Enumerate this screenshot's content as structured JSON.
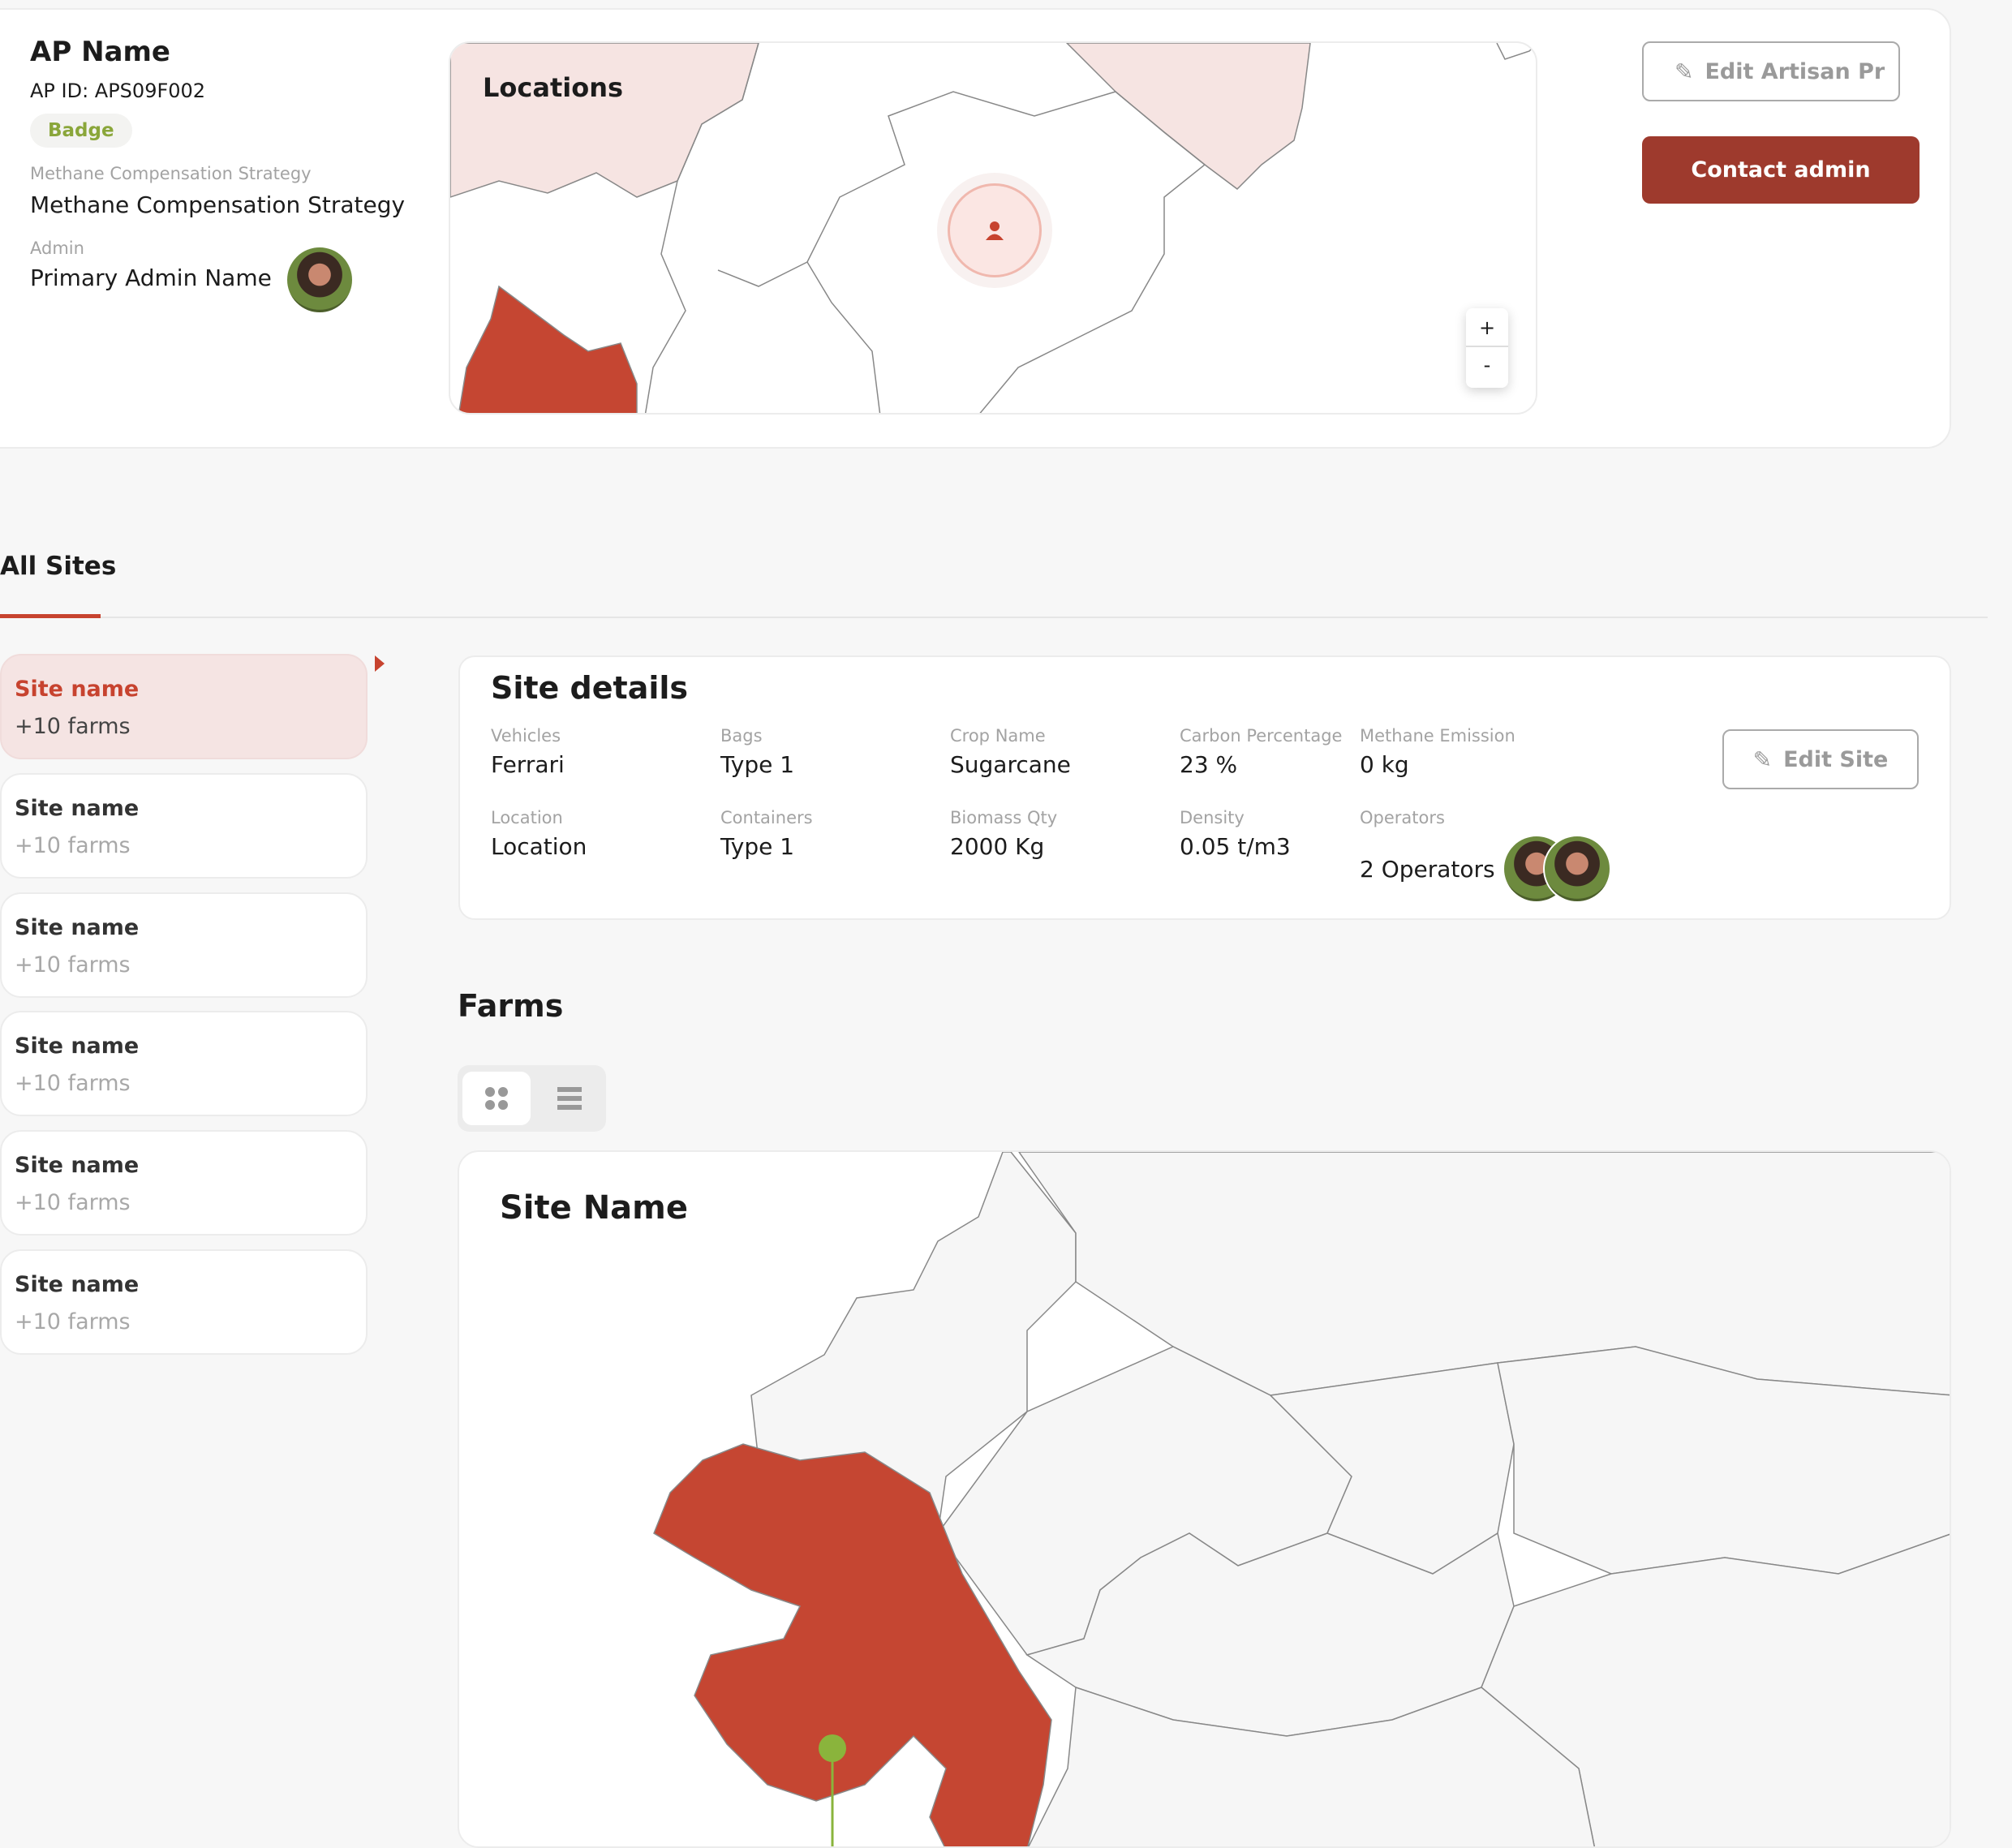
{
  "profile": {
    "name": "AP Name",
    "ap_id": "AP ID: APS09F002",
    "badge": "Badge",
    "strategy_label": "Methane Compensation Strategy",
    "strategy_value": "Methane Compensation Strategy",
    "admin_label": "Admin",
    "admin_name": "Primary Admin Name"
  },
  "locations_map": {
    "title": "Locations",
    "zoom_in": "+",
    "zoom_out": "-"
  },
  "actions": {
    "edit_profile": "Edit Artisan Pr",
    "contact_admin": "Contact admin"
  },
  "tabs": [
    {
      "label": "All Sites",
      "active": true
    }
  ],
  "sites": [
    {
      "name": "Site name",
      "farms": "+10 farms",
      "selected": true
    },
    {
      "name": "Site name",
      "farms": "+10 farms"
    },
    {
      "name": "Site name",
      "farms": "+10 farms"
    },
    {
      "name": "Site name",
      "farms": "+10 farms"
    },
    {
      "name": "Site name",
      "farms": "+10 farms"
    },
    {
      "name": "Site name",
      "farms": "+10 farms"
    }
  ],
  "site_details": {
    "title": "Site details",
    "edit_label": "Edit Site",
    "fields": [
      {
        "label": "Vehicles",
        "value": "Ferrari"
      },
      {
        "label": "Bags",
        "value": "Type 1"
      },
      {
        "label": "Crop Name",
        "value": "Sugarcane"
      },
      {
        "label": "Carbon Percentage",
        "value": "23 %"
      },
      {
        "label": "Methane Emission",
        "value": "0 kg"
      },
      {
        "label": "Location",
        "value": "Location"
      },
      {
        "label": "Containers",
        "value": "Type 1"
      },
      {
        "label": "Biomass Qty",
        "value": "2000 Kg"
      },
      {
        "label": "Density",
        "value": "0.05 t/m3"
      },
      {
        "label": "Operators",
        "value": "2 Operators"
      }
    ]
  },
  "farms": {
    "title": "Farms",
    "view_mode": "grid",
    "map_title": "Site Name"
  },
  "colors": {
    "accent": "#c7432f",
    "button": "#9e3a2d",
    "selected_bg": "#f5e4e3",
    "badge_text": "#8aa63a",
    "pin": "#8ab43c"
  }
}
